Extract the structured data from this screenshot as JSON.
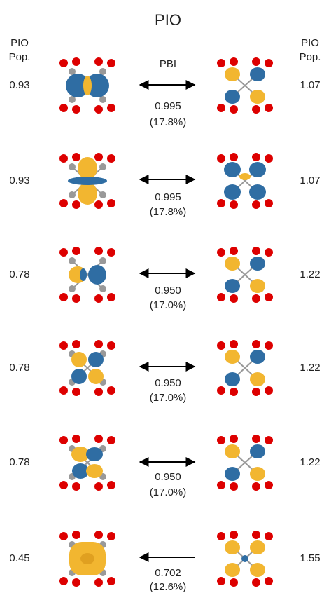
{
  "title": "PIO",
  "left_header": [
    "PIO",
    "Pop."
  ],
  "right_header": [
    "PIO",
    "Pop."
  ],
  "center_header": "PBI",
  "rows": [
    {
      "left_pop": "0.93",
      "pbi": "0.995",
      "percent": "(17.8%)",
      "right_pop": "1.07"
    },
    {
      "left_pop": "0.93",
      "pbi": "0.995",
      "percent": "(17.8%)",
      "right_pop": "1.07"
    },
    {
      "left_pop": "0.78",
      "pbi": "0.950",
      "percent": "(17.0%)",
      "right_pop": "1.22"
    },
    {
      "left_pop": "0.78",
      "pbi": "0.950",
      "percent": "(17.0%)",
      "right_pop": "1.22"
    },
    {
      "left_pop": "0.78",
      "pbi": "0.950",
      "percent": "(17.0%)",
      "right_pop": "1.22"
    },
    {
      "left_pop": "0.45",
      "pbi": "0.702",
      "percent": "(12.6%)",
      "right_pop": "1.55"
    }
  ]
}
